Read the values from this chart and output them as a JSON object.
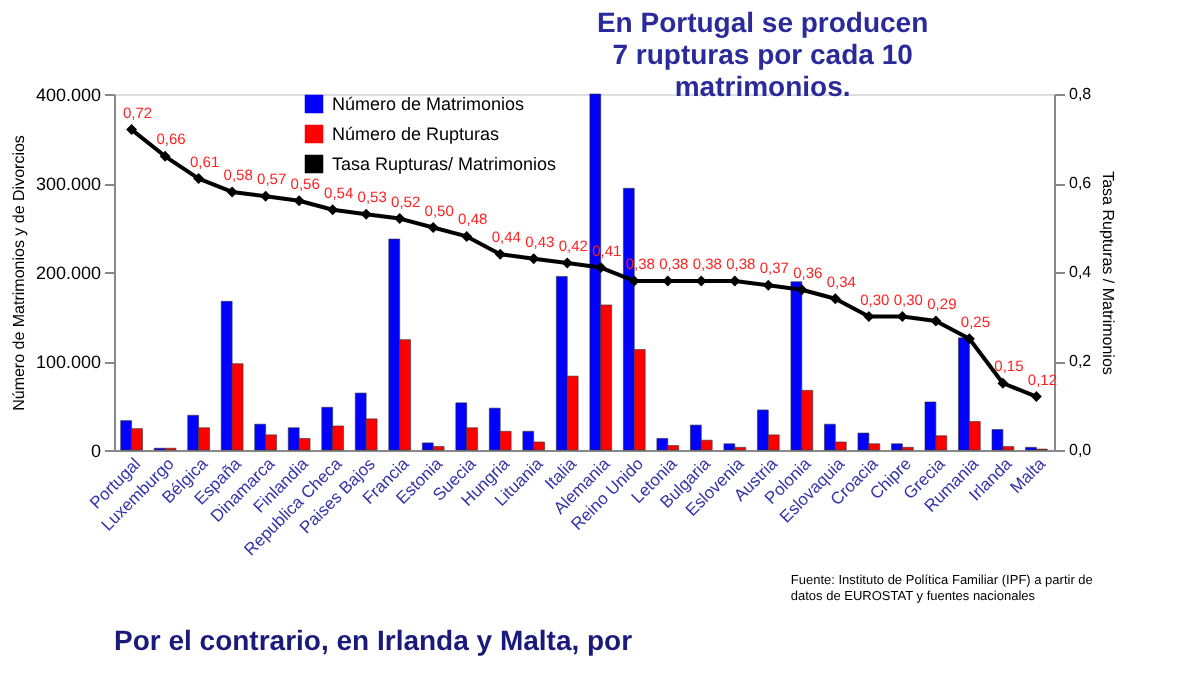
{
  "chart_data": {
    "type": "bar",
    "categories": [
      "Portugal",
      "Luxemburgo",
      "Bélgica",
      "España",
      "Dinamarca",
      "Finlandia",
      "Republica Checa",
      "Paises Bajos",
      "Francia",
      "Estonia",
      "Suecia",
      "Hungria",
      "Lituania",
      "Italia",
      "Alemania",
      "Reino Unido",
      "Letonia",
      "Bulgaria",
      "Eslovenia",
      "Austria",
      "Polonia",
      "Eslovaquia",
      "Croacia",
      "Chipre",
      "Grecia",
      "Rumania",
      "Irlanda",
      "Malta"
    ],
    "series": [
      {
        "name": "Número de Matrimonios",
        "color": "#0000ff",
        "values": [
          33000,
          2000,
          39000,
          167000,
          29000,
          25000,
          48000,
          64000,
          237000,
          8000,
          53000,
          47000,
          21000,
          195000,
          400000,
          294000,
          13000,
          28000,
          7000,
          45000,
          189000,
          29000,
          19000,
          7000,
          54000,
          126000,
          23000,
          3000
        ]
      },
      {
        "name": "Número de Rupturas",
        "color": "#ff0000",
        "values": [
          24000,
          2000,
          25000,
          97000,
          17000,
          13000,
          27000,
          35000,
          124000,
          4000,
          25000,
          21000,
          9000,
          83000,
          163000,
          113000,
          5000,
          11000,
          3000,
          17000,
          67000,
          9000,
          7000,
          3000,
          16000,
          32000,
          4000,
          1000
        ]
      },
      {
        "name": "Tasa Rupturas/ Matrimonios",
        "type": "line",
        "axis": "y2",
        "color": "#000000",
        "marker": "diamond",
        "values": [
          0.72,
          0.66,
          0.61,
          0.58,
          0.57,
          0.56,
          0.54,
          0.53,
          0.52,
          0.5,
          0.48,
          0.44,
          0.43,
          0.42,
          0.41,
          0.38,
          0.38,
          0.38,
          0.38,
          0.37,
          0.36,
          0.34,
          0.3,
          0.3,
          0.29,
          0.25,
          0.15,
          0.12
        ],
        "value_labels": [
          "0,72",
          "0,66",
          "0,61",
          "0,58",
          "0,57",
          "0,56",
          "0,54",
          "0,53",
          "0,52",
          "0,50",
          "0,48",
          "0,44",
          "0,43",
          "0,42",
          "0,41",
          "0,38",
          "0,38",
          "0,38",
          "0,38",
          "0,37",
          "0,36",
          "0,34",
          "0,30",
          "0,30",
          "0,29",
          "0,25",
          "0,15",
          "0,12"
        ]
      }
    ],
    "ylabel": "Número de Matrimonios y de Divorcios",
    "y2label": "Tasa Rupturas / Matrimonios",
    "ylim": [
      0,
      400000
    ],
    "yticks": [
      0,
      {
        "value": 100000,
        "label": "100.000"
      },
      {
        "value": 200000,
        "label": "200.000"
      },
      {
        "value": 300000,
        "label": "300.000"
      },
      {
        "value": 400000,
        "label": "400.000"
      }
    ],
    "y2lim": [
      0,
      0.8
    ],
    "y2ticks": [
      {
        "value": 0,
        "label": "0,0"
      },
      {
        "value": 0.2,
        "label": "0,2"
      },
      {
        "value": 0.4,
        "label": "0,4"
      },
      {
        "value": 0.6,
        "label": "0,6"
      },
      {
        "value": 0.8,
        "label": "0,8"
      }
    ],
    "grid": false,
    "legend": "top left",
    "annotations": [
      "En Portugal se producen 7 rupturas por cada 10 matrimonios.",
      "Fuente: Instituto de Política Familiar (IPF) a partir de datos de EUROSTAT y fuentes nacionales",
      "Por el contrario, en Irlanda y Malta, por"
    ]
  }
}
